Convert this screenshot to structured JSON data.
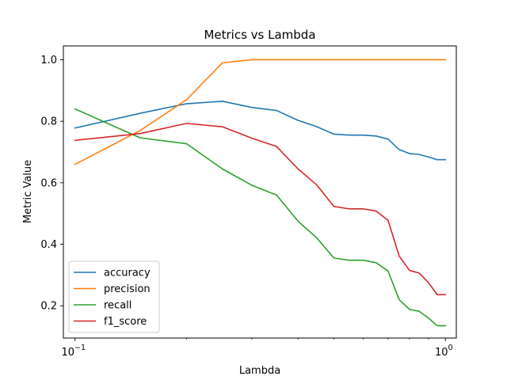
{
  "chart_data": {
    "type": "line",
    "title": "Metrics vs Lambda",
    "xlabel": "Lambda",
    "ylabel": "Metric Value",
    "xscale": "log",
    "xlim": [
      0.093,
      1.07
    ],
    "ylim": [
      0.095,
      1.045
    ],
    "x_ticks": [
      {
        "value": 0.1,
        "base": "10",
        "exp": "−1"
      },
      {
        "value": 1.0,
        "base": "10",
        "exp": "0"
      }
    ],
    "y_ticks": [
      {
        "value": 0.2,
        "label": "0.2"
      },
      {
        "value": 0.4,
        "label": "0.4"
      },
      {
        "value": 0.6,
        "label": "0.6"
      },
      {
        "value": 0.8,
        "label": "0.8"
      },
      {
        "value": 1.0,
        "label": "1.0"
      }
    ],
    "legend_position": "lower-left",
    "grid": false,
    "series": [
      {
        "name": "accuracy",
        "color": "#1f77b4",
        "points": [
          [
            0.1,
            0.778
          ],
          [
            0.15,
            0.826
          ],
          [
            0.2,
            0.857
          ],
          [
            0.25,
            0.865
          ],
          [
            0.3,
            0.845
          ],
          [
            0.35,
            0.835
          ],
          [
            0.4,
            0.803
          ],
          [
            0.45,
            0.782
          ],
          [
            0.5,
            0.758
          ],
          [
            0.55,
            0.755
          ],
          [
            0.6,
            0.755
          ],
          [
            0.65,
            0.752
          ],
          [
            0.7,
            0.742
          ],
          [
            0.75,
            0.708
          ],
          [
            0.8,
            0.695
          ],
          [
            0.85,
            0.692
          ],
          [
            0.9,
            0.684
          ],
          [
            0.95,
            0.675
          ],
          [
            1.0,
            0.675
          ]
        ]
      },
      {
        "name": "precision",
        "color": "#ff7f0e",
        "points": [
          [
            0.1,
            0.66
          ],
          [
            0.15,
            0.77
          ],
          [
            0.2,
            0.87
          ],
          [
            0.25,
            0.99
          ],
          [
            0.3,
            1.0
          ],
          [
            0.35,
            1.0
          ],
          [
            0.4,
            1.0
          ],
          [
            0.45,
            1.0
          ],
          [
            0.5,
            1.0
          ],
          [
            0.55,
            1.0
          ],
          [
            0.6,
            1.0
          ],
          [
            0.65,
            1.0
          ],
          [
            0.7,
            1.0
          ],
          [
            0.75,
            1.0
          ],
          [
            0.8,
            1.0
          ],
          [
            0.85,
            1.0
          ],
          [
            0.9,
            1.0
          ],
          [
            0.95,
            1.0
          ],
          [
            1.0,
            1.0
          ]
        ]
      },
      {
        "name": "recall",
        "color": "#2ca02c",
        "points": [
          [
            0.1,
            0.84
          ],
          [
            0.15,
            0.746
          ],
          [
            0.2,
            0.727
          ],
          [
            0.25,
            0.645
          ],
          [
            0.3,
            0.592
          ],
          [
            0.35,
            0.56
          ],
          [
            0.4,
            0.475
          ],
          [
            0.45,
            0.42
          ],
          [
            0.5,
            0.355
          ],
          [
            0.55,
            0.348
          ],
          [
            0.6,
            0.348
          ],
          [
            0.65,
            0.34
          ],
          [
            0.7,
            0.313
          ],
          [
            0.75,
            0.22
          ],
          [
            0.8,
            0.188
          ],
          [
            0.85,
            0.182
          ],
          [
            0.9,
            0.16
          ],
          [
            0.95,
            0.135
          ],
          [
            1.0,
            0.135
          ]
        ]
      },
      {
        "name": "f1_score",
        "color": "#d62728",
        "points": [
          [
            0.1,
            0.738
          ],
          [
            0.15,
            0.76
          ],
          [
            0.2,
            0.793
          ],
          [
            0.25,
            0.782
          ],
          [
            0.3,
            0.745
          ],
          [
            0.35,
            0.718
          ],
          [
            0.4,
            0.645
          ],
          [
            0.45,
            0.592
          ],
          [
            0.5,
            0.523
          ],
          [
            0.55,
            0.515
          ],
          [
            0.6,
            0.515
          ],
          [
            0.65,
            0.508
          ],
          [
            0.7,
            0.478
          ],
          [
            0.75,
            0.362
          ],
          [
            0.8,
            0.315
          ],
          [
            0.85,
            0.306
          ],
          [
            0.9,
            0.275
          ],
          [
            0.95,
            0.236
          ],
          [
            1.0,
            0.236
          ]
        ]
      }
    ]
  }
}
